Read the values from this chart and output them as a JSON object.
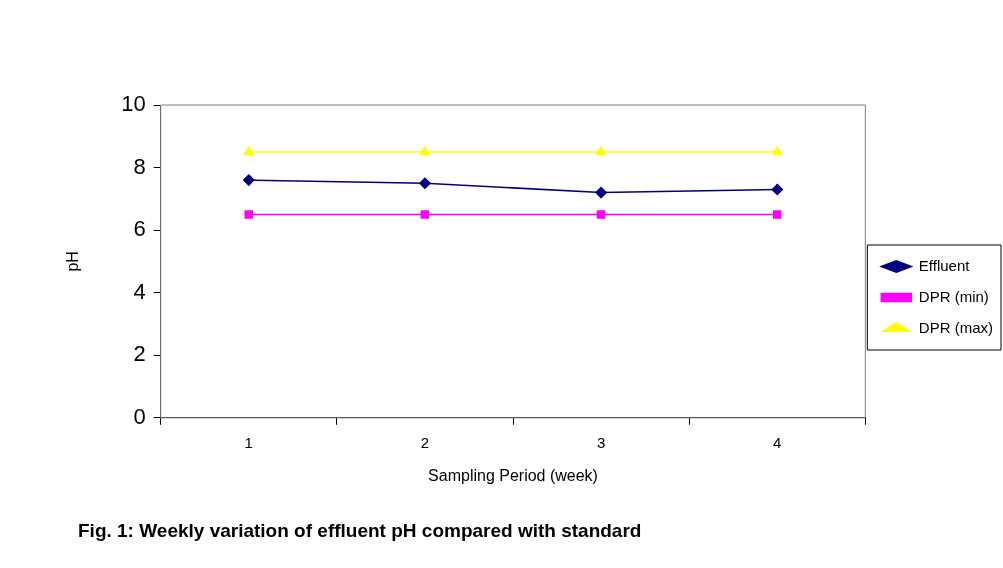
{
  "chart_data": {
    "type": "line",
    "xlabel": "Sampling Period (week)",
    "ylabel": "pH",
    "categories": [
      "1",
      "2",
      "3",
      "4"
    ],
    "series": [
      {
        "name": "Effluent",
        "color": "#000080",
        "marker": "diamond",
        "values": [
          7.6,
          7.5,
          7.2,
          7.3
        ]
      },
      {
        "name": "DPR (min)",
        "color": "#ff00ff",
        "marker": "square",
        "values": [
          6.5,
          6.5,
          6.5,
          6.5
        ]
      },
      {
        "name": "DPR (max)",
        "color": "#ffff00",
        "marker": "triangle",
        "values": [
          8.5,
          8.5,
          8.5,
          8.5
        ]
      }
    ],
    "ylim": [
      0,
      10
    ],
    "yticks": [
      0,
      2,
      4,
      6,
      8,
      10
    ],
    "grid": false,
    "legend": "right",
    "annotations": [
      "Fig. 1: Weekly variation of effluent pH compared with standard"
    ]
  }
}
